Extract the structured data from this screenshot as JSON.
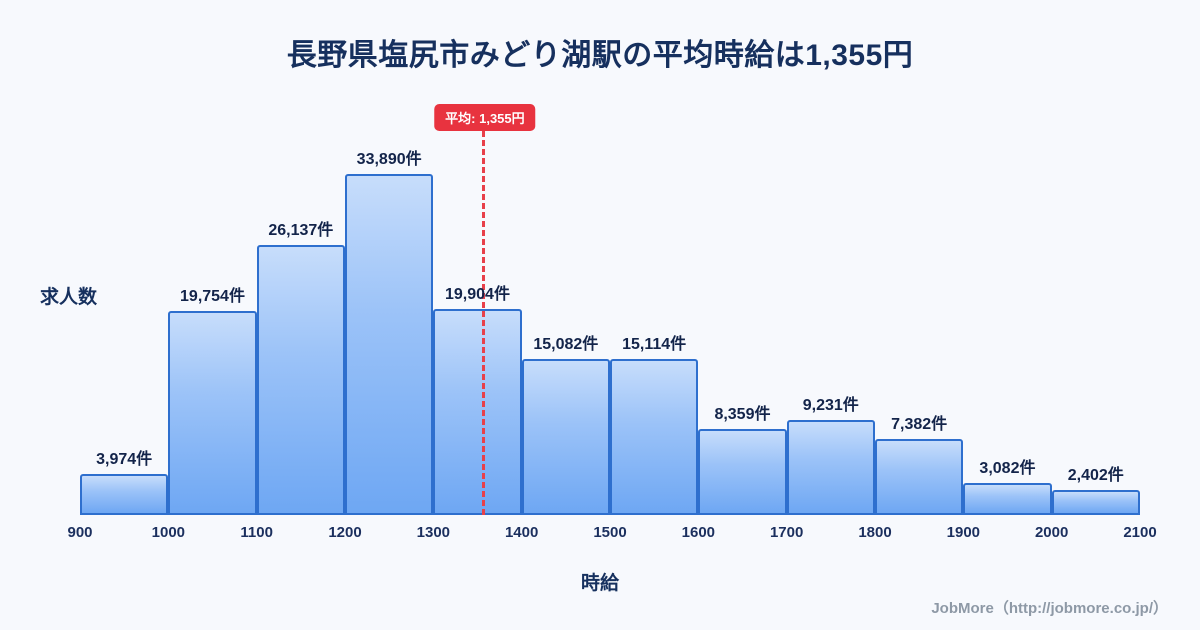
{
  "chart_data": {
    "type": "bar",
    "title": "長野県塩尻市みどり湖駅の平均時給は1,355円",
    "xlabel": "時給",
    "ylabel": "求人数",
    "bin_edges": [
      900,
      1000,
      1100,
      1200,
      1300,
      1400,
      1500,
      1600,
      1700,
      1800,
      1900,
      2000,
      2100
    ],
    "values": [
      3974,
      19754,
      26137,
      33890,
      19904,
      15082,
      15114,
      8359,
      9231,
      7382,
      3082,
      2402
    ],
    "value_labels": [
      "3,974件",
      "19,754件",
      "26,137件",
      "33,890件",
      "19,904件",
      "15,082件",
      "15,114件",
      "8,359件",
      "9,231件",
      "7,382件",
      "3,082件",
      "2,402件"
    ],
    "average": 1355,
    "average_label": "平均: 1,355円",
    "x_range": [
      900,
      2100
    ],
    "ylim": [
      0,
      36000
    ],
    "grid": false,
    "legend": false,
    "colors": {
      "bar_fill_top": "#c7ddfb",
      "bar_fill_bottom": "#6ea7f3",
      "bar_border": "#2e6fce",
      "average_line": "#e8404a",
      "title_text": "#16305e",
      "background": "#f7f9fd",
      "footer_text": "#8e99a6"
    }
  },
  "footer": {
    "credit": "JobMore（http://jobmore.co.jp/）"
  }
}
